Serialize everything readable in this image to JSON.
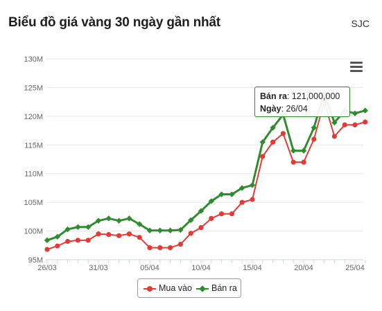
{
  "title": "Biểu đồ giá vàng 30 ngày gần nhất",
  "brand": "SJC",
  "colors": {
    "buy": "#e53935",
    "sell": "#2e8b2e",
    "grid": "#e6e6e6",
    "axis": "#ccd6eb"
  },
  "menu_icon": "hamburger-menu-icon",
  "tooltip": {
    "label1": "Bán ra",
    "value1": ": 121,000,000",
    "label2": "Ngày",
    "value2": ": 26/04"
  },
  "chart_data": {
    "type": "line",
    "x_tick_labels": [
      "26/03",
      "31/03",
      "05/04",
      "10/04",
      "15/04",
      "20/04",
      "25/04"
    ],
    "y_tick_labels": [
      "95M",
      "100M",
      "105M",
      "110M",
      "115M",
      "120M",
      "125M",
      "130M"
    ],
    "ylim": [
      95,
      130
    ],
    "y_unit": "M",
    "series": [
      {
        "name": "Mua vào",
        "values": [
          96.8,
          97.4,
          98.2,
          98.4,
          98.4,
          99.5,
          99.4,
          99.2,
          99.5,
          98.9,
          97.1,
          97.1,
          97.1,
          97.7,
          99.6,
          100.6,
          102.2,
          103.0,
          103.0,
          105.0,
          105.5,
          113.0,
          115.5,
          117.0,
          112.0,
          112.0,
          116.0,
          122.5,
          116.5,
          118.5,
          118.5,
          119.0
        ]
      },
      {
        "name": "Bán ra",
        "values": [
          98.4,
          99.0,
          100.3,
          100.7,
          100.7,
          101.8,
          102.2,
          101.8,
          102.2,
          101.2,
          100.1,
          100.1,
          100.1,
          100.2,
          101.9,
          103.5,
          105.2,
          106.4,
          106.4,
          107.5,
          108.0,
          115.5,
          118.0,
          120.3,
          114.0,
          114.0,
          118.0,
          124.0,
          118.9,
          121.0,
          120.5,
          121.0
        ]
      }
    ]
  }
}
